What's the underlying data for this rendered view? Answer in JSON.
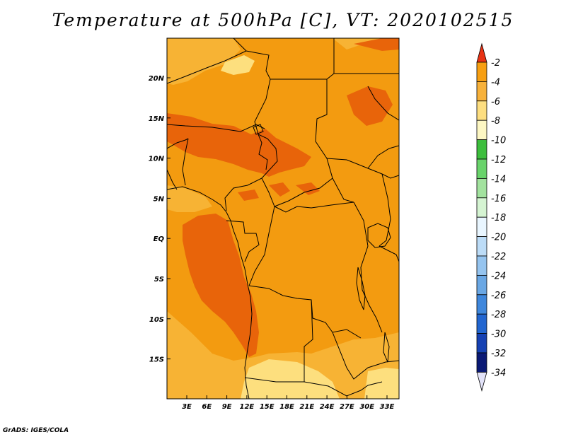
{
  "map": {
    "title": "Temperature at 500hPa [C], VT: 2020102515",
    "credit": "GrADS: IGES/COLA",
    "lat_ticks": [
      "20N",
      "15N",
      "10N",
      "5N",
      "EQ",
      "5S",
      "10S",
      "15S"
    ],
    "lon_ticks": [
      "3E",
      "6E",
      "9E",
      "12E",
      "15E",
      "18E",
      "21E",
      "24E",
      "27E",
      "30E",
      "33E"
    ],
    "region": "Central Africa",
    "colors": {
      "darkest_shade": "#e8640a",
      "dominant_shade": "#f39b10",
      "light_shade": "#f7b334",
      "pale_shade": "#fddf7e"
    }
  },
  "colorbar": {
    "labels": [
      "-2",
      "-4",
      "-6",
      "-8",
      "-10",
      "-12",
      "-14",
      "-16",
      "-18",
      "-20",
      "-22",
      "-24",
      "-26",
      "-28",
      "-30",
      "-32",
      "-34"
    ],
    "top_arrow_color": "#e83214",
    "bottom_arrow_color": "#e2e2f8",
    "colors": [
      "#f56a16",
      "#f79f12",
      "#f7b13a",
      "#fdde80",
      "#fdf7c3",
      "#3dbe3d",
      "#69d36b",
      "#a2e29e",
      "#d5f4d2",
      "#e9f6ff",
      "#bcdcf7",
      "#95c4ef",
      "#6aa7e4",
      "#3f87dc",
      "#2266d0",
      "#1541b3",
      "#0a1975"
    ]
  }
}
